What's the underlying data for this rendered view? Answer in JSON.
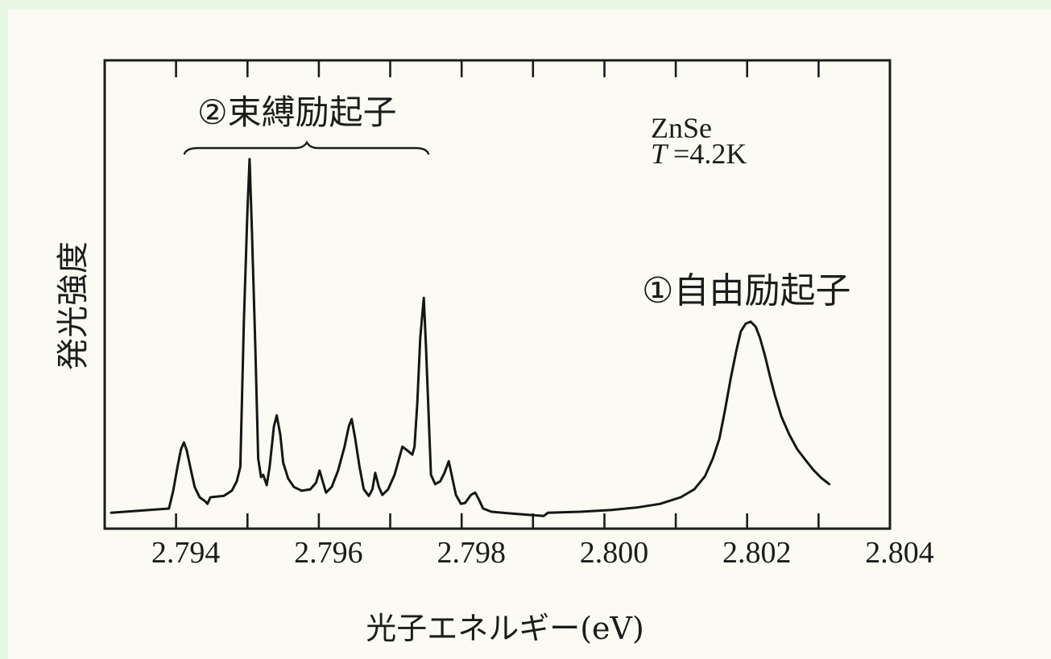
{
  "page": {
    "frame_color": "#e7f7e4",
    "paper_color": "#fbfbf3",
    "ink_color": "#1c1c1c"
  },
  "chart_data": {
    "type": "line",
    "xlabel": "光子エネルギー(eV)",
    "ylabel": "発光強度",
    "xlim": [
      2.793,
      2.804
    ],
    "ylim": [
      0,
      100
    ],
    "grid": false,
    "legend": "none",
    "xticks_mirrored_top": true,
    "xticks": [
      2.794,
      2.795,
      2.796,
      2.797,
      2.798,
      2.799,
      2.8,
      2.801,
      2.802,
      2.803
    ],
    "xtick_labels": [
      {
        "value": 2.794,
        "label": "2.794"
      },
      {
        "value": 2.796,
        "label": "2.796"
      },
      {
        "value": 2.798,
        "label": "2.798"
      },
      {
        "value": 2.8,
        "label": "2.800"
      },
      {
        "value": 2.802,
        "label": "2.802"
      },
      {
        "value": 2.804,
        "label": "2.804"
      }
    ],
    "annotations": {
      "bound_exciton": "②束縛励起子",
      "free_exciton": "①自由励起子",
      "material": "ZnSe",
      "temperature_symbol": "T",
      "temperature_value": "=4.2K"
    },
    "x": [
      2.79309,
      2.7939,
      2.79396,
      2.79402,
      2.79407,
      2.79411,
      2.79415,
      2.79421,
      2.79426,
      2.79433,
      2.79441,
      2.79444,
      2.79448,
      2.79467,
      2.79478,
      2.79485,
      2.7949,
      2.79495,
      2.795,
      2.79503,
      2.79506,
      2.79511,
      2.79515,
      2.79519,
      2.79522,
      2.79527,
      2.79531,
      2.79537,
      2.79541,
      2.79546,
      2.7955,
      2.79557,
      2.79565,
      2.79576,
      2.79588,
      2.79596,
      2.79601,
      2.79606,
      2.7961,
      2.79618,
      2.79627,
      2.79636,
      2.79642,
      2.79646,
      2.79651,
      2.79657,
      2.79663,
      2.7967,
      2.79675,
      2.79679,
      2.79684,
      2.79689,
      2.79697,
      2.79706,
      2.79713,
      2.79717,
      2.79724,
      2.79731,
      2.79734,
      2.79738,
      2.79742,
      2.79747,
      2.7975,
      2.79754,
      2.79757,
      2.79763,
      2.7977,
      2.79776,
      2.79782,
      2.79786,
      2.79792,
      2.79799,
      2.79805,
      2.79813,
      2.79819,
      2.79825,
      2.7983,
      2.79842,
      2.79864,
      2.79898,
      2.79915,
      2.79921,
      2.79966,
      2.80011,
      2.80045,
      2.80078,
      2.80107,
      2.80126,
      2.80141,
      2.80152,
      2.80161,
      2.80169,
      2.80177,
      2.80185,
      2.80191,
      2.80198,
      2.80205,
      2.80212,
      2.80218,
      2.80225,
      2.80232,
      2.80239,
      2.80248,
      2.80259,
      2.8027,
      2.80282,
      2.80293,
      2.80304,
      2.80315
    ],
    "series": [
      {
        "values": [
          3.4,
          4.3,
          8.1,
          13.2,
          17.0,
          18.4,
          16.7,
          12.4,
          8.9,
          6.7,
          5.8,
          5.3,
          6.7,
          7.0,
          8.1,
          10.1,
          13.2,
          44.2,
          68.2,
          78.9,
          64.8,
          39.0,
          15.0,
          11.0,
          11.5,
          9.3,
          13.2,
          21.8,
          24.2,
          20.1,
          14.1,
          10.7,
          8.9,
          8.1,
          8.4,
          9.8,
          12.4,
          9.8,
          7.7,
          8.9,
          12.4,
          17.5,
          21.8,
          23.4,
          19.2,
          13.2,
          8.4,
          7.0,
          8.4,
          11.9,
          8.9,
          7.2,
          8.4,
          11.5,
          15.3,
          17.5,
          16.7,
          15.8,
          17.5,
          27.0,
          40.7,
          49.3,
          39.0,
          23.5,
          11.5,
          9.5,
          10.1,
          11.9,
          14.4,
          11.5,
          7.2,
          5.3,
          5.5,
          7.2,
          7.7,
          6.0,
          4.3,
          3.6,
          3.3,
          2.9,
          2.7,
          3.4,
          3.6,
          4.0,
          4.5,
          5.3,
          6.7,
          8.4,
          11.2,
          15.0,
          19.2,
          25.3,
          32.1,
          38.1,
          42.1,
          43.8,
          44.2,
          43.1,
          40.7,
          36.9,
          32.5,
          28.4,
          23.9,
          20.1,
          17.0,
          14.6,
          12.5,
          10.8,
          9.5
        ]
      }
    ]
  }
}
